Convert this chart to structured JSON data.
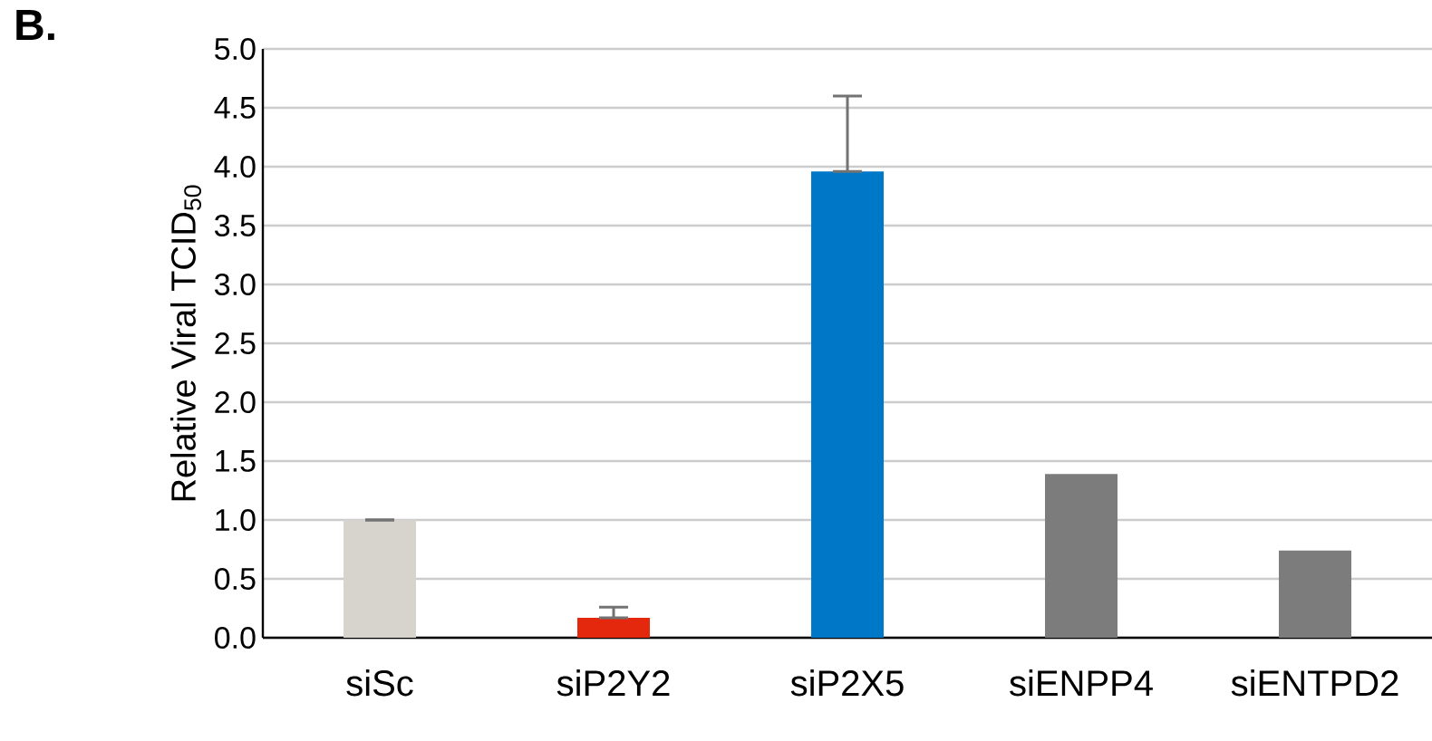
{
  "chart_data": {
    "type": "bar",
    "ylabel": "Relative Viral TCID$_{50}$",
    "annotations": [
      "**B.**"
    ],
    "categories": [
      "siSc",
      "siP2Y2",
      "siP2X5",
      "siENPP4",
      "siENTPD2"
    ],
    "values": [
      1.0,
      0.17,
      3.96,
      1.39,
      0.74
    ],
    "errors": [
      [
        1.0,
        1.0
      ],
      [
        0.17,
        0.26
      ],
      [
        3.96,
        4.6
      ],
      null,
      null
    ],
    "colors": [
      "#d6d4cc",
      "#e3280e",
      "#0078c8",
      "#7c7c7c",
      "#7c7c7c"
    ],
    "ylim": [
      0,
      5
    ],
    "yticks": [
      {
        "value": 0,
        "label": "0.0"
      },
      {
        "value": 0.5,
        "label": "0.5"
      },
      {
        "value": 1,
        "label": "1.0"
      },
      {
        "value": 1.5,
        "label": "1.5"
      },
      {
        "value": 2,
        "label": "2.0"
      },
      {
        "value": 2.5,
        "label": "2.5"
      },
      {
        "value": 3,
        "label": "3.0"
      },
      {
        "value": 3.5,
        "label": "3.5"
      },
      {
        "value": 4,
        "label": "4.0"
      },
      {
        "value": 4.5,
        "label": "4.5"
      },
      {
        "value": 5,
        "label": "5.0"
      }
    ],
    "grid": "y"
  }
}
